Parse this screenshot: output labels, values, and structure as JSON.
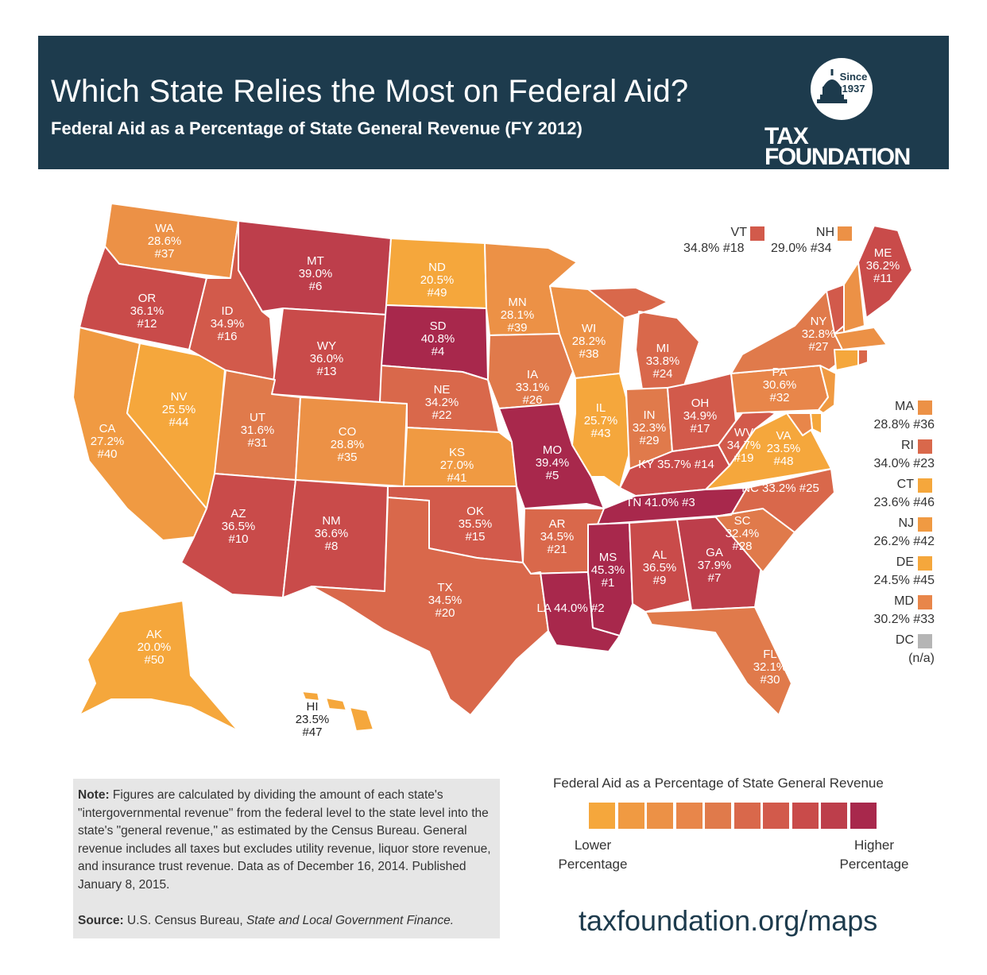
{
  "header": {
    "title": "Which State Relies the Most on Federal Aid?",
    "subtitle": "Federal Aid as a Percentage of State General Revenue (FY 2012)",
    "logo": {
      "since": "Since 1937",
      "line1": "TAX",
      "line2": "FOUNDATION"
    }
  },
  "colors": {
    "header_bg": "#1d3b4d",
    "scale": [
      "#f5a73c",
      "#f09a42",
      "#ec9146",
      "#e8864a",
      "#e07a4b",
      "#d9684b",
      "#d25a4b",
      "#c94b4a",
      "#bd3e4b",
      "#a8284c"
    ],
    "na": "#b5b5b5"
  },
  "states": [
    {
      "abbr": "WA",
      "pct": "28.6%",
      "rank": "#37",
      "color": "#ec9146"
    },
    {
      "abbr": "OR",
      "pct": "36.1%",
      "rank": "#12",
      "color": "#c94b4a"
    },
    {
      "abbr": "CA",
      "pct": "27.2%",
      "rank": "#40",
      "color": "#f09a42"
    },
    {
      "abbr": "NV",
      "pct": "25.5%",
      "rank": "#44",
      "color": "#f5a73c"
    },
    {
      "abbr": "ID",
      "pct": "34.9%",
      "rank": "#16",
      "color": "#d25a4b"
    },
    {
      "abbr": "MT",
      "pct": "39.0%",
      "rank": "#6",
      "color": "#bd3e4b"
    },
    {
      "abbr": "WY",
      "pct": "36.0%",
      "rank": "#13",
      "color": "#c94b4a"
    },
    {
      "abbr": "UT",
      "pct": "31.6%",
      "rank": "#31",
      "color": "#e07a4b"
    },
    {
      "abbr": "CO",
      "pct": "28.8%",
      "rank": "#35",
      "color": "#ec9146"
    },
    {
      "abbr": "AZ",
      "pct": "36.5%",
      "rank": "#10",
      "color": "#c94b4a"
    },
    {
      "abbr": "NM",
      "pct": "36.6%",
      "rank": "#8",
      "color": "#c94b4a"
    },
    {
      "abbr": "ND",
      "pct": "20.5%",
      "rank": "#49",
      "color": "#f5a73c"
    },
    {
      "abbr": "SD",
      "pct": "40.8%",
      "rank": "#4",
      "color": "#a8284c"
    },
    {
      "abbr": "NE",
      "pct": "34.2%",
      "rank": "#22",
      "color": "#d9684b"
    },
    {
      "abbr": "KS",
      "pct": "27.0%",
      "rank": "#41",
      "color": "#f09a42"
    },
    {
      "abbr": "OK",
      "pct": "35.5%",
      "rank": "#15",
      "color": "#d25a4b"
    },
    {
      "abbr": "TX",
      "pct": "34.5%",
      "rank": "#20",
      "color": "#d9684b"
    },
    {
      "abbr": "MN",
      "pct": "28.1%",
      "rank": "#39",
      "color": "#ec9146"
    },
    {
      "abbr": "IA",
      "pct": "33.1%",
      "rank": "#26",
      "color": "#e07a4b"
    },
    {
      "abbr": "MO",
      "pct": "39.4%",
      "rank": "#5",
      "color": "#a8284c"
    },
    {
      "abbr": "AR",
      "pct": "34.5%",
      "rank": "#21",
      "color": "#d9684b"
    },
    {
      "abbr": "LA",
      "pct": "44.0%",
      "rank": "#2",
      "color": "#a8284c"
    },
    {
      "abbr": "WI",
      "pct": "28.2%",
      "rank": "#38",
      "color": "#ec9146"
    },
    {
      "abbr": "IL",
      "pct": "25.7%",
      "rank": "#43",
      "color": "#f5a73c"
    },
    {
      "abbr": "MI",
      "pct": "33.8%",
      "rank": "#24",
      "color": "#d9684b"
    },
    {
      "abbr": "IN",
      "pct": "32.3%",
      "rank": "#29",
      "color": "#e07a4b"
    },
    {
      "abbr": "OH",
      "pct": "34.9%",
      "rank": "#17",
      "color": "#d25a4b"
    },
    {
      "abbr": "KY",
      "pct": "35.7%",
      "rank": "#14",
      "color": "#c94b4a"
    },
    {
      "abbr": "TN",
      "pct": "41.0%",
      "rank": "#3",
      "color": "#a8284c"
    },
    {
      "abbr": "MS",
      "pct": "45.3%",
      "rank": "#1",
      "color": "#a8284c"
    },
    {
      "abbr": "AL",
      "pct": "36.5%",
      "rank": "#9",
      "color": "#c94b4a"
    },
    {
      "abbr": "GA",
      "pct": "37.9%",
      "rank": "#7",
      "color": "#bd3e4b"
    },
    {
      "abbr": "FL",
      "pct": "32.1%",
      "rank": "#30",
      "color": "#e07a4b"
    },
    {
      "abbr": "SC",
      "pct": "32.4%",
      "rank": "#28",
      "color": "#e07a4b"
    },
    {
      "abbr": "NC",
      "pct": "33.2%",
      "rank": "#25",
      "color": "#d9684b"
    },
    {
      "abbr": "VA",
      "pct": "23.5%",
      "rank": "#48",
      "color": "#f5a73c"
    },
    {
      "abbr": "WV",
      "pct": "34.7%",
      "rank": "#19",
      "color": "#d25a4b"
    },
    {
      "abbr": "PA",
      "pct": "30.6%",
      "rank": "#32",
      "color": "#e8864a"
    },
    {
      "abbr": "NY",
      "pct": "32.8%",
      "rank": "#27",
      "color": "#e07a4b"
    },
    {
      "abbr": "ME",
      "pct": "36.2%",
      "rank": "#11",
      "color": "#c94b4a"
    },
    {
      "abbr": "AK",
      "pct": "20.0%",
      "rank": "#50",
      "color": "#f5a73c"
    },
    {
      "abbr": "HI",
      "pct": "23.5%",
      "rank": "#47",
      "color": "#f5a73c"
    }
  ],
  "top_callouts": [
    {
      "abbr": "VT",
      "value": "34.8% #18",
      "color": "#d25a4b"
    },
    {
      "abbr": "NH",
      "value": "29.0% #34",
      "color": "#ec9146"
    }
  ],
  "side_legend": [
    {
      "abbr": "MA",
      "value": "28.8% #36",
      "color": "#ec9146"
    },
    {
      "abbr": "RI",
      "value": "34.0% #23",
      "color": "#d9684b"
    },
    {
      "abbr": "CT",
      "value": "23.6% #46",
      "color": "#f5a73c"
    },
    {
      "abbr": "NJ",
      "value": "26.2% #42",
      "color": "#f09a42"
    },
    {
      "abbr": "DE",
      "value": "24.5% #45",
      "color": "#f5a73c"
    },
    {
      "abbr": "MD",
      "value": "30.2% #33",
      "color": "#e8864a"
    },
    {
      "abbr": "DC",
      "value": "(n/a)",
      "color": "#b5b5b5"
    }
  ],
  "note": {
    "label": "Note:",
    "text": "Figures are calculated by dividing the amount of each state's \"intergovernmental revenue\" from the federal level to the state level into the state's \"general revenue,\" as estimated by the Census Bureau.  General revenue includes all taxes but excludes utility revenue, liquor store revenue, and insurance trust revenue. Data as of December 16, 2014. Published January 8, 2015.",
    "source_label": "Source:",
    "source_plain": "U.S. Census Bureau, ",
    "source_italic": "State and Local Government Finance."
  },
  "scale_legend": {
    "title": "Federal Aid as a Percentage of State General Revenue",
    "lower": "Lower Percentage",
    "higher": "Higher Percentage"
  },
  "url": "taxfoundation.org/maps"
}
